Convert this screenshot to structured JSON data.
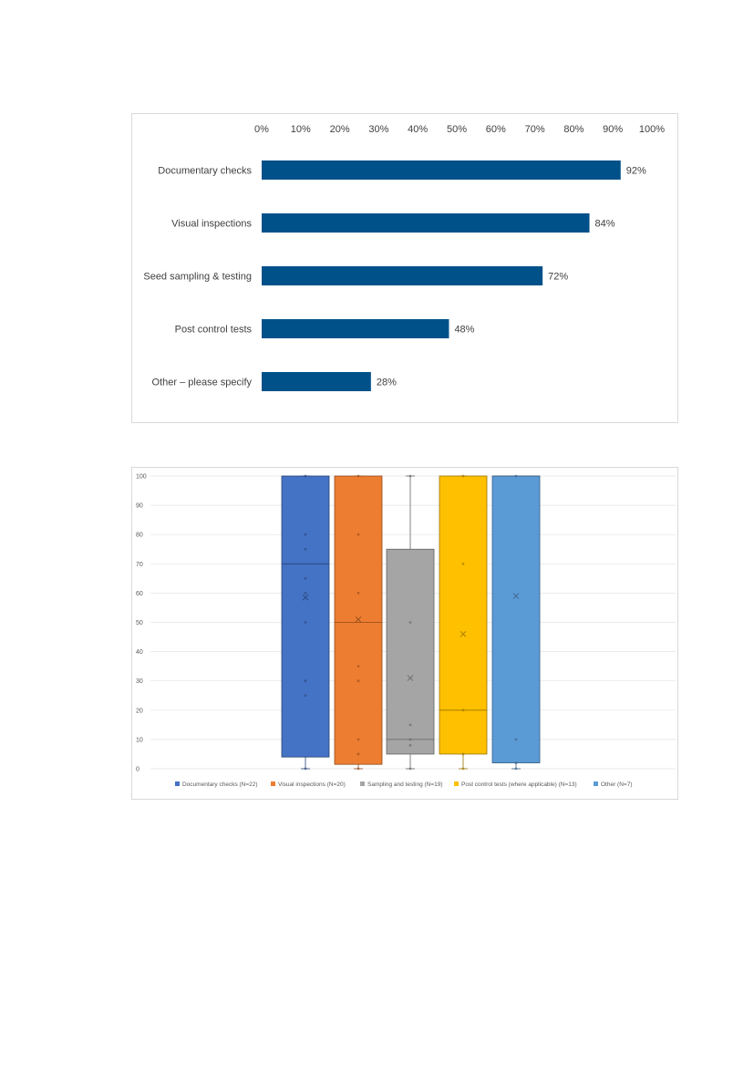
{
  "chart_data": [
    {
      "type": "bar",
      "orientation": "horizontal",
      "categories": [
        "Documentary checks",
        "Visual inspections",
        "Seed sampling & testing",
        "Post control tests",
        "Other – please specify"
      ],
      "values": [
        92,
        84,
        72,
        48,
        28
      ],
      "value_labels": [
        "92%",
        "84%",
        "72%",
        "48%",
        "28%"
      ],
      "x_ticks": [
        "0%",
        "10%",
        "20%",
        "30%",
        "40%",
        "50%",
        "60%",
        "70%",
        "80%",
        "90%",
        "100%"
      ],
      "xlim": [
        0,
        100
      ],
      "x_axis_position": "top",
      "color": "#00518a",
      "grid": false
    },
    {
      "type": "box",
      "ylim": [
        0,
        100
      ],
      "y_ticks": [
        "0",
        "10",
        "20",
        "30",
        "40",
        "50",
        "60",
        "70",
        "80",
        "90",
        "100"
      ],
      "grid": true,
      "legend_position": "bottom",
      "series": [
        {
          "name": "Documentary checks (N=22)",
          "color": "#4472c4",
          "min": 0,
          "q1": 4,
          "median": 70,
          "q3": 100,
          "max": 100,
          "mean": 58.5,
          "points": [
            0,
            25,
            30,
            50,
            60,
            65,
            75,
            80,
            100
          ]
        },
        {
          "name": "Visual inspections (N=20)",
          "color": "#ed7d31",
          "min": 0,
          "q1": 1.5,
          "median": 50,
          "q3": 100,
          "max": 100,
          "mean": 51,
          "points": [
            0,
            5,
            10,
            30,
            35,
            60,
            80,
            100
          ]
        },
        {
          "name": "Sampling and testing (N=19)",
          "color": "#a5a5a5",
          "min": 0,
          "q1": 5,
          "median": 10,
          "q3": 75,
          "max": 100,
          "mean": 31,
          "points": [
            0,
            8,
            10,
            15,
            50,
            100
          ]
        },
        {
          "name": "Post control tests (where applicable) (N=13)",
          "color": "#ffc000",
          "min": 0,
          "q1": 5,
          "median": 20,
          "q3": 100,
          "max": 100,
          "mean": 46,
          "points": [
            0,
            5,
            20,
            70,
            100
          ]
        },
        {
          "name": "Other (N=7)",
          "color": "#5b9bd5",
          "min": 0,
          "q1": 2,
          "median": 100,
          "q3": 100,
          "max": 100,
          "mean": 59,
          "points": [
            0,
            2,
            10,
            100
          ]
        }
      ]
    }
  ]
}
